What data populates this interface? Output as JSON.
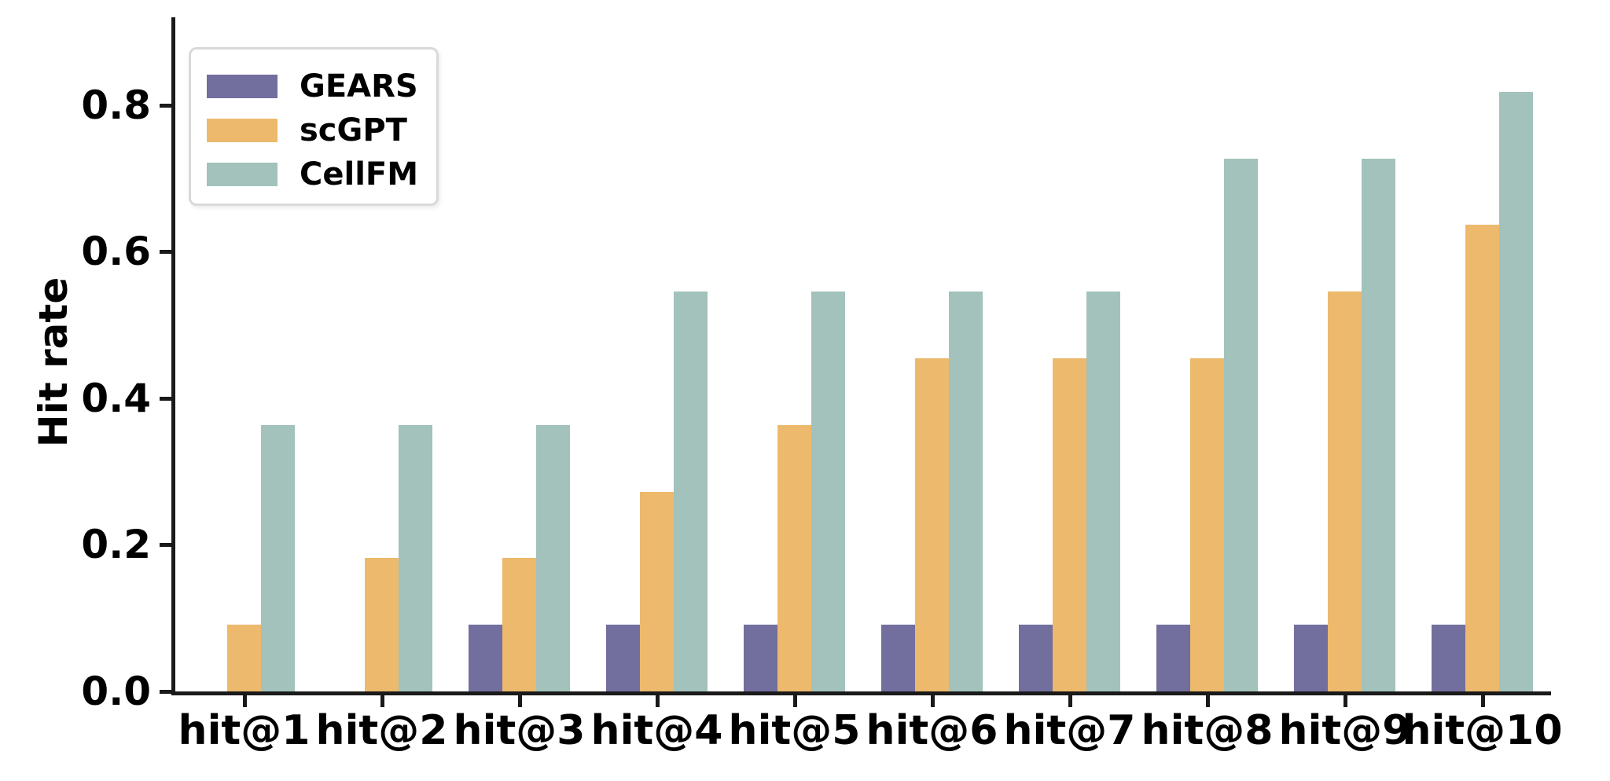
{
  "chart_data": {
    "type": "bar",
    "title": "",
    "xlabel": "",
    "ylabel": "Hit rate",
    "categories": [
      "hit@1",
      "hit@2",
      "hit@3",
      "hit@4",
      "hit@5",
      "hit@6",
      "hit@7",
      "hit@8",
      "hit@9",
      "hit@10"
    ],
    "series": [
      {
        "name": "GEARS",
        "color": "#726e9e",
        "values": [
          0,
          0,
          0.0909,
          0.0909,
          0.0909,
          0.0909,
          0.0909,
          0.0909,
          0.0909,
          0.0909
        ]
      },
      {
        "name": "scGPT",
        "color": "#ecb96d",
        "values": [
          0.0909,
          0.1818,
          0.1818,
          0.2727,
          0.3636,
          0.4545,
          0.4545,
          0.4545,
          0.5455,
          0.6364
        ]
      },
      {
        "name": "CellFM",
        "color": "#a2c2bb",
        "values": [
          0.3636,
          0.3636,
          0.3636,
          0.5455,
          0.5455,
          0.5455,
          0.5455,
          0.7273,
          0.7273,
          0.8182
        ]
      }
    ],
    "ylim": [
      0,
      0.92
    ],
    "yticks": [
      {
        "value": 0.0,
        "label": "0.0"
      },
      {
        "value": 0.2,
        "label": "0.2"
      },
      {
        "value": 0.4,
        "label": "0.4"
      },
      {
        "value": 0.6,
        "label": "0.6"
      },
      {
        "value": 0.8,
        "label": "0.8"
      }
    ],
    "grid": false,
    "legend_position": "upper left",
    "axis_color": "#1a1a1a",
    "legend_border_color": "#d9d9d9"
  }
}
